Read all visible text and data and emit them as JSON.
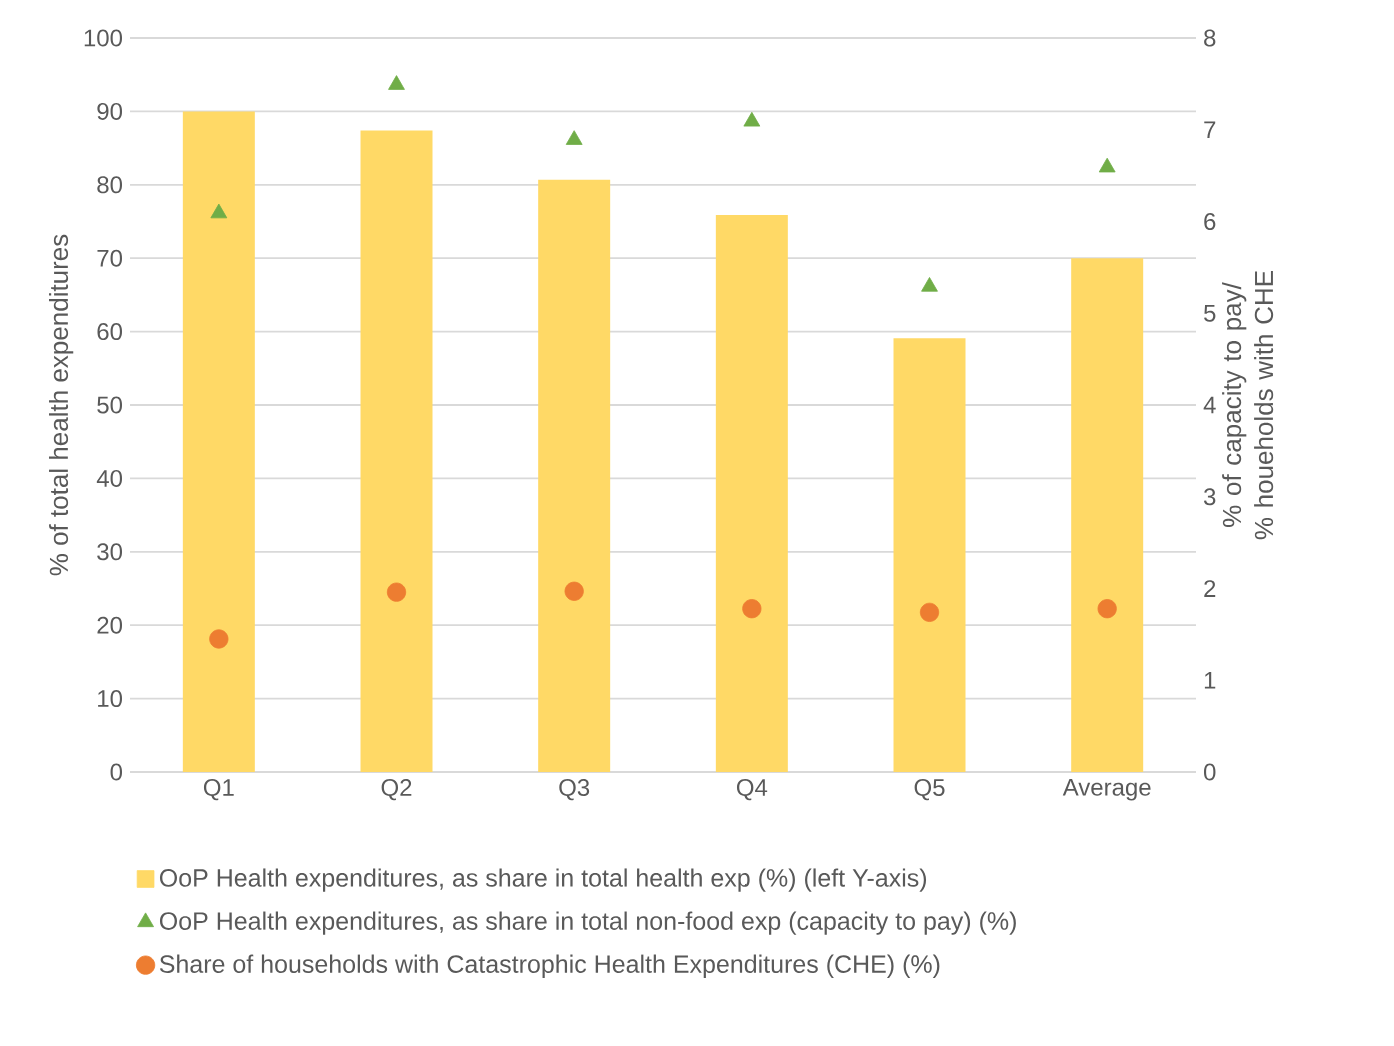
{
  "chart_data": {
    "type": "bar",
    "categories": [
      "Q1",
      "Q2",
      "Q3",
      "Q4",
      "Q5",
      "Average"
    ],
    "ylabel": "% of total health expenditures",
    "y2label": "% of capacity to pay/ % houeholds with CHE",
    "series": [
      {
        "name": "OoP Health expenditures, as share in total health exp (%) (left Y-axis)",
        "color": "#ffd966",
        "values": [
          90.0,
          87.4,
          80.7,
          75.9,
          59.1,
          70.0
        ]
      },
      {
        "name": "OoP Health expenditures, as share in total non-food exp (capacity to pay) (%)",
        "type": "scatter",
        "axis": "y2",
        "marker": "triangle",
        "color": "#70ad47",
        "values": [
          6.09,
          7.49,
          6.89,
          7.09,
          5.29,
          6.59
        ]
      },
      {
        "name": "Share of households with Catastrophic Health Expenditures (CHE) (%)",
        "type": "scatter",
        "axis": "y2",
        "marker": "circle",
        "color": "#ed7d31",
        "values": [
          1.45,
          1.96,
          1.97,
          1.78,
          1.74,
          1.78
        ]
      }
    ],
    "ylim": [
      0,
      100
    ],
    "yticks": [
      0,
      10,
      20,
      30,
      40,
      50,
      60,
      70,
      80,
      90,
      100
    ],
    "y2lim": [
      0,
      8
    ],
    "y2ticks": [
      0,
      1,
      2,
      3,
      4,
      5,
      6,
      7,
      8
    ],
    "grid": "y",
    "legend": "bottom"
  }
}
